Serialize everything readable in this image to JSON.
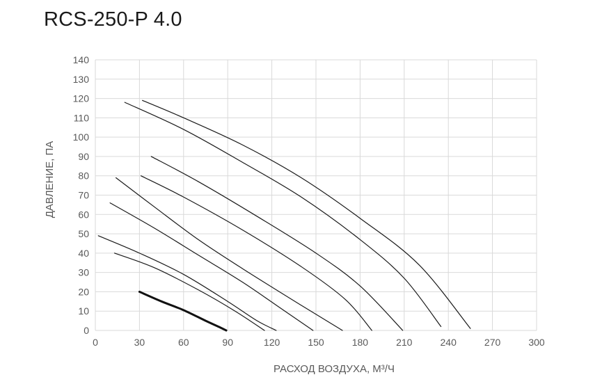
{
  "chart_data": {
    "type": "line",
    "title": "RCS-250-P 4.0",
    "xlabel": "РАСХОД ВОЗДУХА, М³/Ч",
    "ylabel": "ДАВЛЕНИЕ, ПА",
    "xlim": [
      0,
      300
    ],
    "ylim": [
      0,
      140
    ],
    "xticks": [
      "0",
      "30",
      "60",
      "90",
      "120",
      "150",
      "180",
      "210",
      "240",
      "270",
      "300"
    ],
    "yticks": [
      "0",
      "10",
      "20",
      "30",
      "40",
      "50",
      "60",
      "70",
      "80",
      "90",
      "100",
      "110",
      "120",
      "130",
      "140"
    ],
    "grid": true,
    "series": [
      {
        "highlight": true,
        "x": [
          30,
          45,
          60,
          75,
          85,
          89
        ],
        "y": [
          20,
          15,
          10.5,
          5,
          1.5,
          0
        ]
      },
      {
        "highlight": false,
        "x": [
          13,
          40,
          70,
          95,
          115
        ],
        "y": [
          40,
          32.5,
          21,
          10,
          0
        ]
      },
      {
        "highlight": false,
        "x": [
          2,
          30,
          60,
          90,
          110,
          123
        ],
        "y": [
          49,
          40,
          29,
          15,
          5,
          0
        ]
      },
      {
        "highlight": false,
        "x": [
          10,
          40,
          70,
          100,
          125,
          148
        ],
        "y": [
          66,
          53,
          39,
          25,
          12,
          0
        ]
      },
      {
        "highlight": false,
        "x": [
          14,
          40,
          70,
          100,
          140,
          168
        ],
        "y": [
          79,
          64,
          47,
          32,
          13,
          0
        ]
      },
      {
        "highlight": false,
        "x": [
          31,
          60,
          100,
          140,
          170,
          188
        ],
        "y": [
          80,
          69,
          52,
          33,
          16,
          0
        ]
      },
      {
        "highlight": false,
        "x": [
          38,
          70,
          110,
          150,
          180,
          209
        ],
        "y": [
          90,
          77,
          59,
          40,
          23,
          0
        ]
      },
      {
        "highlight": false,
        "x": [
          20,
          60,
          100,
          140,
          180,
          210,
          235
        ],
        "y": [
          118,
          104,
          87,
          69,
          47,
          27,
          2
        ]
      },
      {
        "highlight": false,
        "x": [
          32,
          60,
          100,
          140,
          180,
          220,
          255
        ],
        "y": [
          119,
          110,
          96,
          79,
          58,
          34,
          1
        ]
      }
    ]
  }
}
